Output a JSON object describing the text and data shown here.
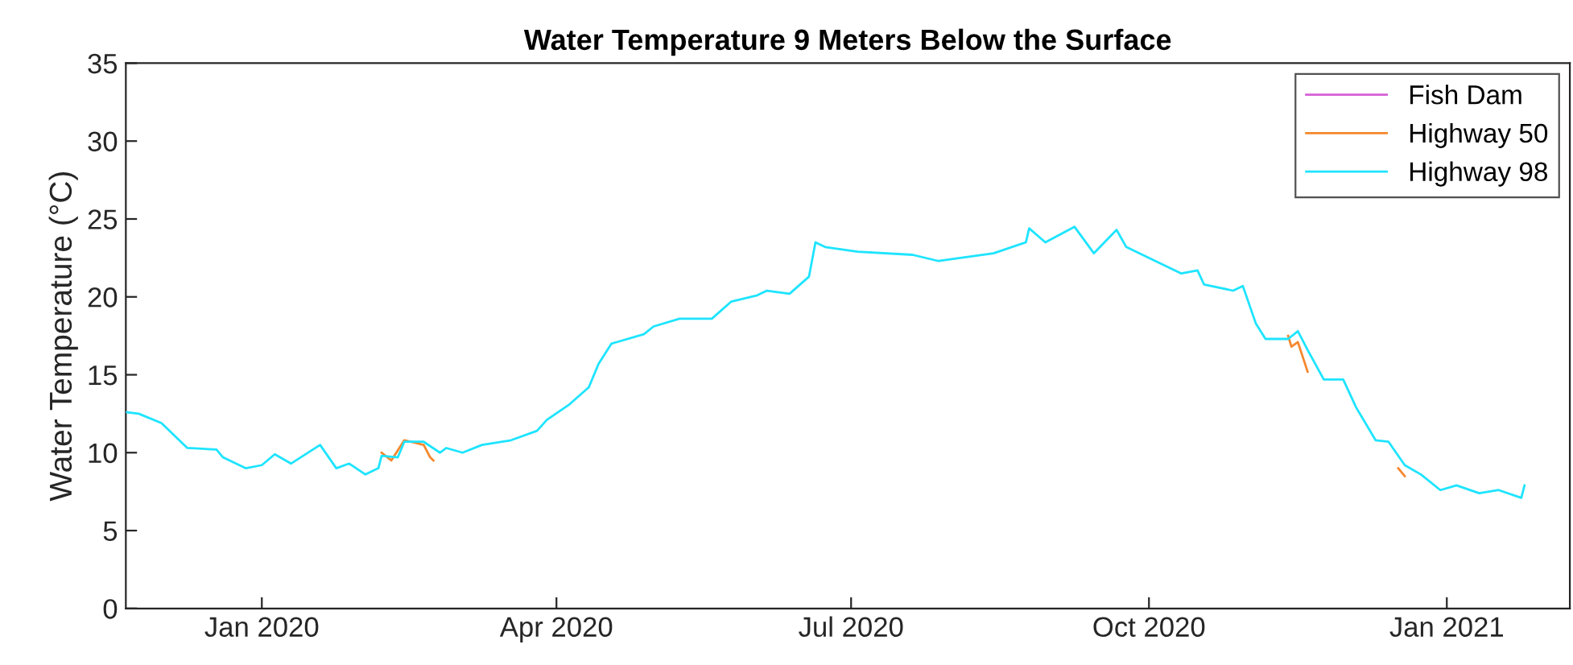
{
  "chart_data": {
    "type": "line",
    "title": "Water Temperature 9 Meters Below the Surface",
    "ylabel": "Water Temperature (°C)",
    "xlim": [
      "2019-11-20",
      "2021-02-08"
    ],
    "ylim": [
      0,
      35
    ],
    "xticks": [
      {
        "value": "2020-01-01",
        "label": "Jan 2020"
      },
      {
        "value": "2020-04-01",
        "label": "Apr 2020"
      },
      {
        "value": "2020-07-01",
        "label": "Jul 2020"
      },
      {
        "value": "2020-10-01",
        "label": "Oct 2020"
      },
      {
        "value": "2021-01-01",
        "label": "Jan 2021"
      }
    ],
    "yticks": [
      0,
      5,
      10,
      15,
      20,
      25,
      30,
      35
    ],
    "grid": false,
    "legend": "top right",
    "line_style": "solid",
    "marker": "none",
    "series": [
      {
        "name": "Fish Dam",
        "color": "#d660d6"
      },
      {
        "name": "Highway 50",
        "color": "#f5872d",
        "x": [
          "2020-02-07",
          "2020-02-10",
          "2020-02-14",
          "2020-02-20",
          "2020-02-22",
          "2020-02-23",
          "2020-06-01",
          "2020-11-13",
          "2020-11-14",
          "2020-11-16",
          "2020-11-19",
          "2020-11-30",
          "2020-12-17",
          "2020-12-19"
        ],
        "values": [
          10.0,
          9.5,
          10.8,
          10.5,
          9.7,
          9.5,
          null,
          17.5,
          16.8,
          17.1,
          15.2,
          null,
          9.0,
          8.5
        ]
      },
      {
        "name": "Highway 98",
        "color": "#1ee4ff",
        "x": [
          "2019-11-20",
          "2019-11-24",
          "2019-12-01",
          "2019-12-09",
          "2019-12-18",
          "2019-12-20",
          "2019-12-27",
          "2020-01-01",
          "2020-01-05",
          "2020-01-10",
          "2020-01-19",
          "2020-01-24",
          "2020-01-28",
          "2020-02-02",
          "2020-02-06",
          "2020-02-07",
          "2020-02-12",
          "2020-02-14",
          "2020-02-20",
          "2020-02-25",
          "2020-02-27",
          "2020-03-03",
          "2020-03-09",
          "2020-03-18",
          "2020-03-26",
          "2020-03-29",
          "2020-04-05",
          "2020-04-11",
          "2020-04-14",
          "2020-04-18",
          "2020-04-28",
          "2020-05-01",
          "2020-05-09",
          "2020-05-19",
          "2020-05-25",
          "2020-06-02",
          "2020-06-05",
          "2020-06-12",
          "2020-06-18",
          "2020-06-20",
          "2020-06-23",
          "2020-07-03",
          "2020-07-20",
          "2020-07-28",
          "2020-08-14",
          "2020-08-24",
          "2020-08-25",
          "2020-08-30",
          "2020-09-08",
          "2020-09-14",
          "2020-09-21",
          "2020-09-24",
          "2020-10-03",
          "2020-10-11",
          "2020-10-16",
          "2020-10-18",
          "2020-10-27",
          "2020-10-30",
          "2020-11-03",
          "2020-11-06",
          "2020-11-13",
          "2020-11-16",
          "2020-11-19",
          "2020-11-24",
          "2020-11-30",
          "2020-12-04",
          "2020-12-10",
          "2020-12-14",
          "2020-12-19",
          "2020-12-24",
          "2020-12-30",
          "2021-01-04",
          "2021-01-11",
          "2021-01-17",
          "2021-01-24",
          "2021-01-25"
        ],
        "values": [
          12.6,
          12.5,
          11.9,
          10.3,
          10.2,
          9.7,
          9.0,
          9.2,
          9.9,
          9.3,
          10.5,
          9.0,
          9.3,
          8.6,
          9.0,
          9.8,
          9.7,
          10.7,
          10.7,
          10.0,
          10.3,
          10.0,
          10.5,
          10.8,
          11.4,
          12.1,
          13.1,
          14.2,
          15.7,
          17.0,
          17.6,
          18.1,
          18.6,
          18.6,
          19.7,
          20.1,
          20.4,
          20.2,
          21.3,
          23.5,
          23.2,
          22.9,
          22.7,
          22.3,
          22.8,
          23.5,
          24.4,
          23.5,
          24.5,
          22.8,
          24.3,
          23.2,
          22.3,
          21.5,
          21.7,
          20.8,
          20.4,
          20.7,
          18.3,
          17.3,
          17.3,
          17.8,
          16.6,
          14.7,
          14.7,
          12.9,
          10.8,
          10.7,
          9.2,
          8.6,
          7.6,
          7.9,
          7.4,
          7.6,
          7.1,
          7.9
        ]
      }
    ]
  }
}
